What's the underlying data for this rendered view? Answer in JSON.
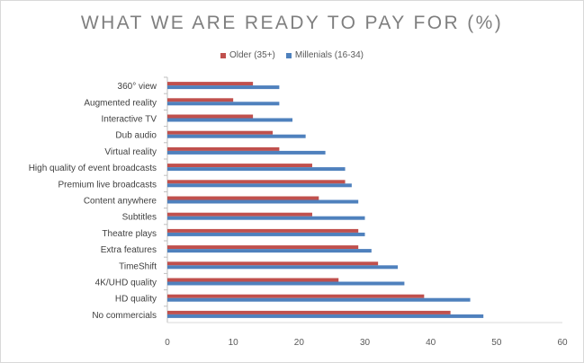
{
  "chart_data": {
    "type": "bar",
    "orientation": "horizontal",
    "title": "WHAT WE ARE READY TO PAY FOR (%)",
    "categories": [
      "No commercials",
      "HD quality",
      "4K/UHD quality",
      "TimeShift",
      "Extra features",
      "Theatre plays",
      "Subtitles",
      "Content anywhere",
      "Premium live broadcasts",
      "High quality of event broadcasts",
      "Virtual reality",
      "Dub audio",
      "Interactive TV",
      "Augmented reality",
      "360° view"
    ],
    "series": [
      {
        "name": "Older (35+)",
        "color": "#c0504d",
        "values": [
          43,
          39,
          26,
          32,
          29,
          29,
          22,
          23,
          27,
          22,
          17,
          16,
          13,
          10,
          13
        ]
      },
      {
        "name": "Millenials (16-34)",
        "color": "#4f81bd",
        "values": [
          48,
          46,
          36,
          35,
          31,
          30,
          30,
          29,
          28,
          27,
          24,
          21,
          19,
          17,
          17
        ]
      }
    ],
    "xlim": [
      0,
      60
    ],
    "xticks": [
      0,
      10,
      20,
      30,
      40,
      50,
      60
    ],
    "legend_position": "top",
    "grid": false
  }
}
